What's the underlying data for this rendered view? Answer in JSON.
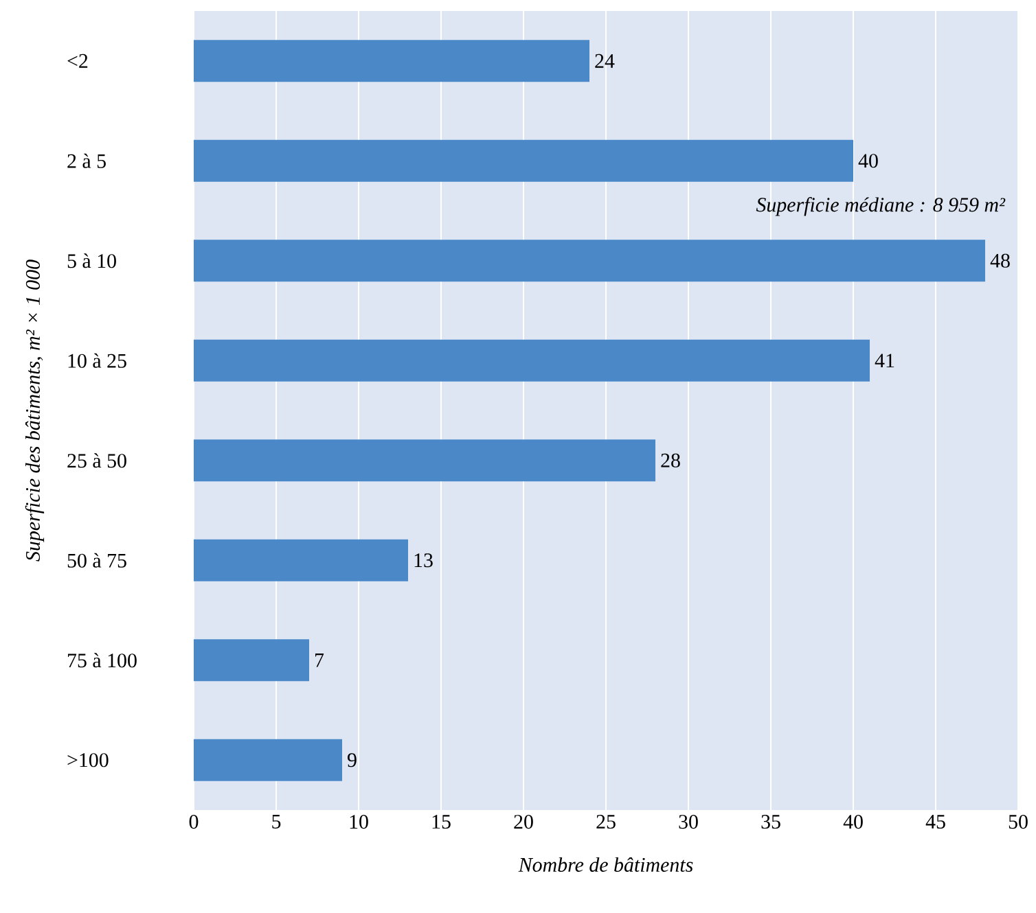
{
  "chart_data": {
    "type": "bar",
    "orientation": "horizontal",
    "xlabel": "Nombre de bâtiments",
    "ylabel": "Superficie des bâtiments, m² × 1 000",
    "categories": [
      "<2",
      "2 à 5",
      "5 à 10",
      "10 à 25",
      "25 à 50",
      "50 à 75",
      "75 à 100",
      ">100"
    ],
    "values": [
      24,
      40,
      48,
      41,
      28,
      13,
      7,
      9
    ],
    "color": "#4a88c8",
    "xlim": [
      0,
      50
    ],
    "xticks": [
      0,
      5,
      10,
      15,
      20,
      25,
      30,
      35,
      40,
      45,
      50
    ],
    "grid": "x",
    "data_labels": true,
    "annotations": [
      "Superficie médiane : 8 959 m²"
    ]
  }
}
